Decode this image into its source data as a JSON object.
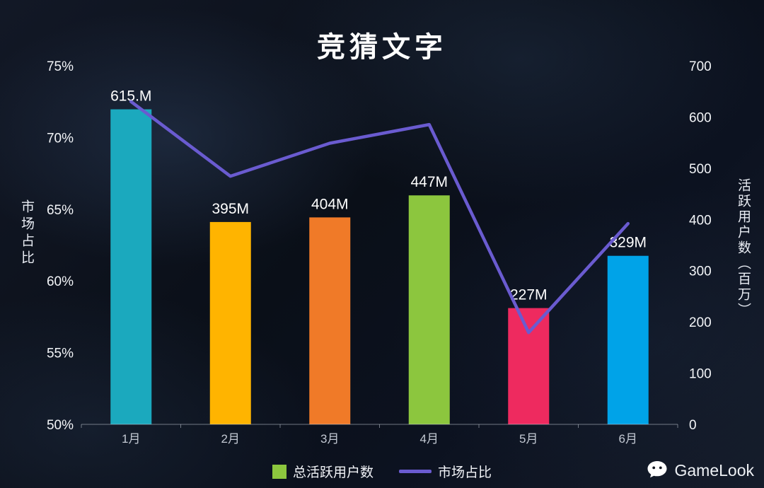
{
  "title": "竞猜文字",
  "chart_data": {
    "type": "bar",
    "categories": [
      "1月",
      "2月",
      "3月",
      "4月",
      "5月",
      "6月"
    ],
    "series": [
      {
        "name": "总活跃用户数",
        "type": "bar",
        "axis": "right",
        "values": [
          615,
          395,
          404,
          447,
          227,
          329
        ],
        "labels": [
          "615.M",
          "395M",
          "404M",
          "447M",
          "227M",
          "329M"
        ],
        "colors": [
          "#1BA9BE",
          "#FFB400",
          "#F07A28",
          "#8CC63E",
          "#EE2A5F",
          "#00A3E8"
        ]
      },
      {
        "name": "市场占比",
        "type": "line",
        "axis": "left",
        "values": [
          72.5,
          67.3,
          69.6,
          70.9,
          56.4,
          64.0
        ],
        "color": "#6A5BD0"
      }
    ],
    "left_axis": {
      "label": "市场占比",
      "ticks": [
        "75%",
        "70%",
        "65%",
        "60%",
        "55%",
        "50%"
      ],
      "min": 50,
      "max": 75
    },
    "right_axis": {
      "label": "活跃用户数（百万）",
      "ticks": [
        "700",
        "600",
        "500",
        "400",
        "300",
        "200",
        "100",
        "0"
      ],
      "min": 0,
      "max": 700
    },
    "legend": [
      {
        "label": "总活跃用户数",
        "swatch": "square",
        "color": "#8CC63E"
      },
      {
        "label": "市场占比",
        "swatch": "line",
        "color": "#6A5BD0"
      }
    ],
    "grid": false,
    "legend_position": "bottom-center"
  },
  "footer": {
    "brand": "GameLook"
  }
}
